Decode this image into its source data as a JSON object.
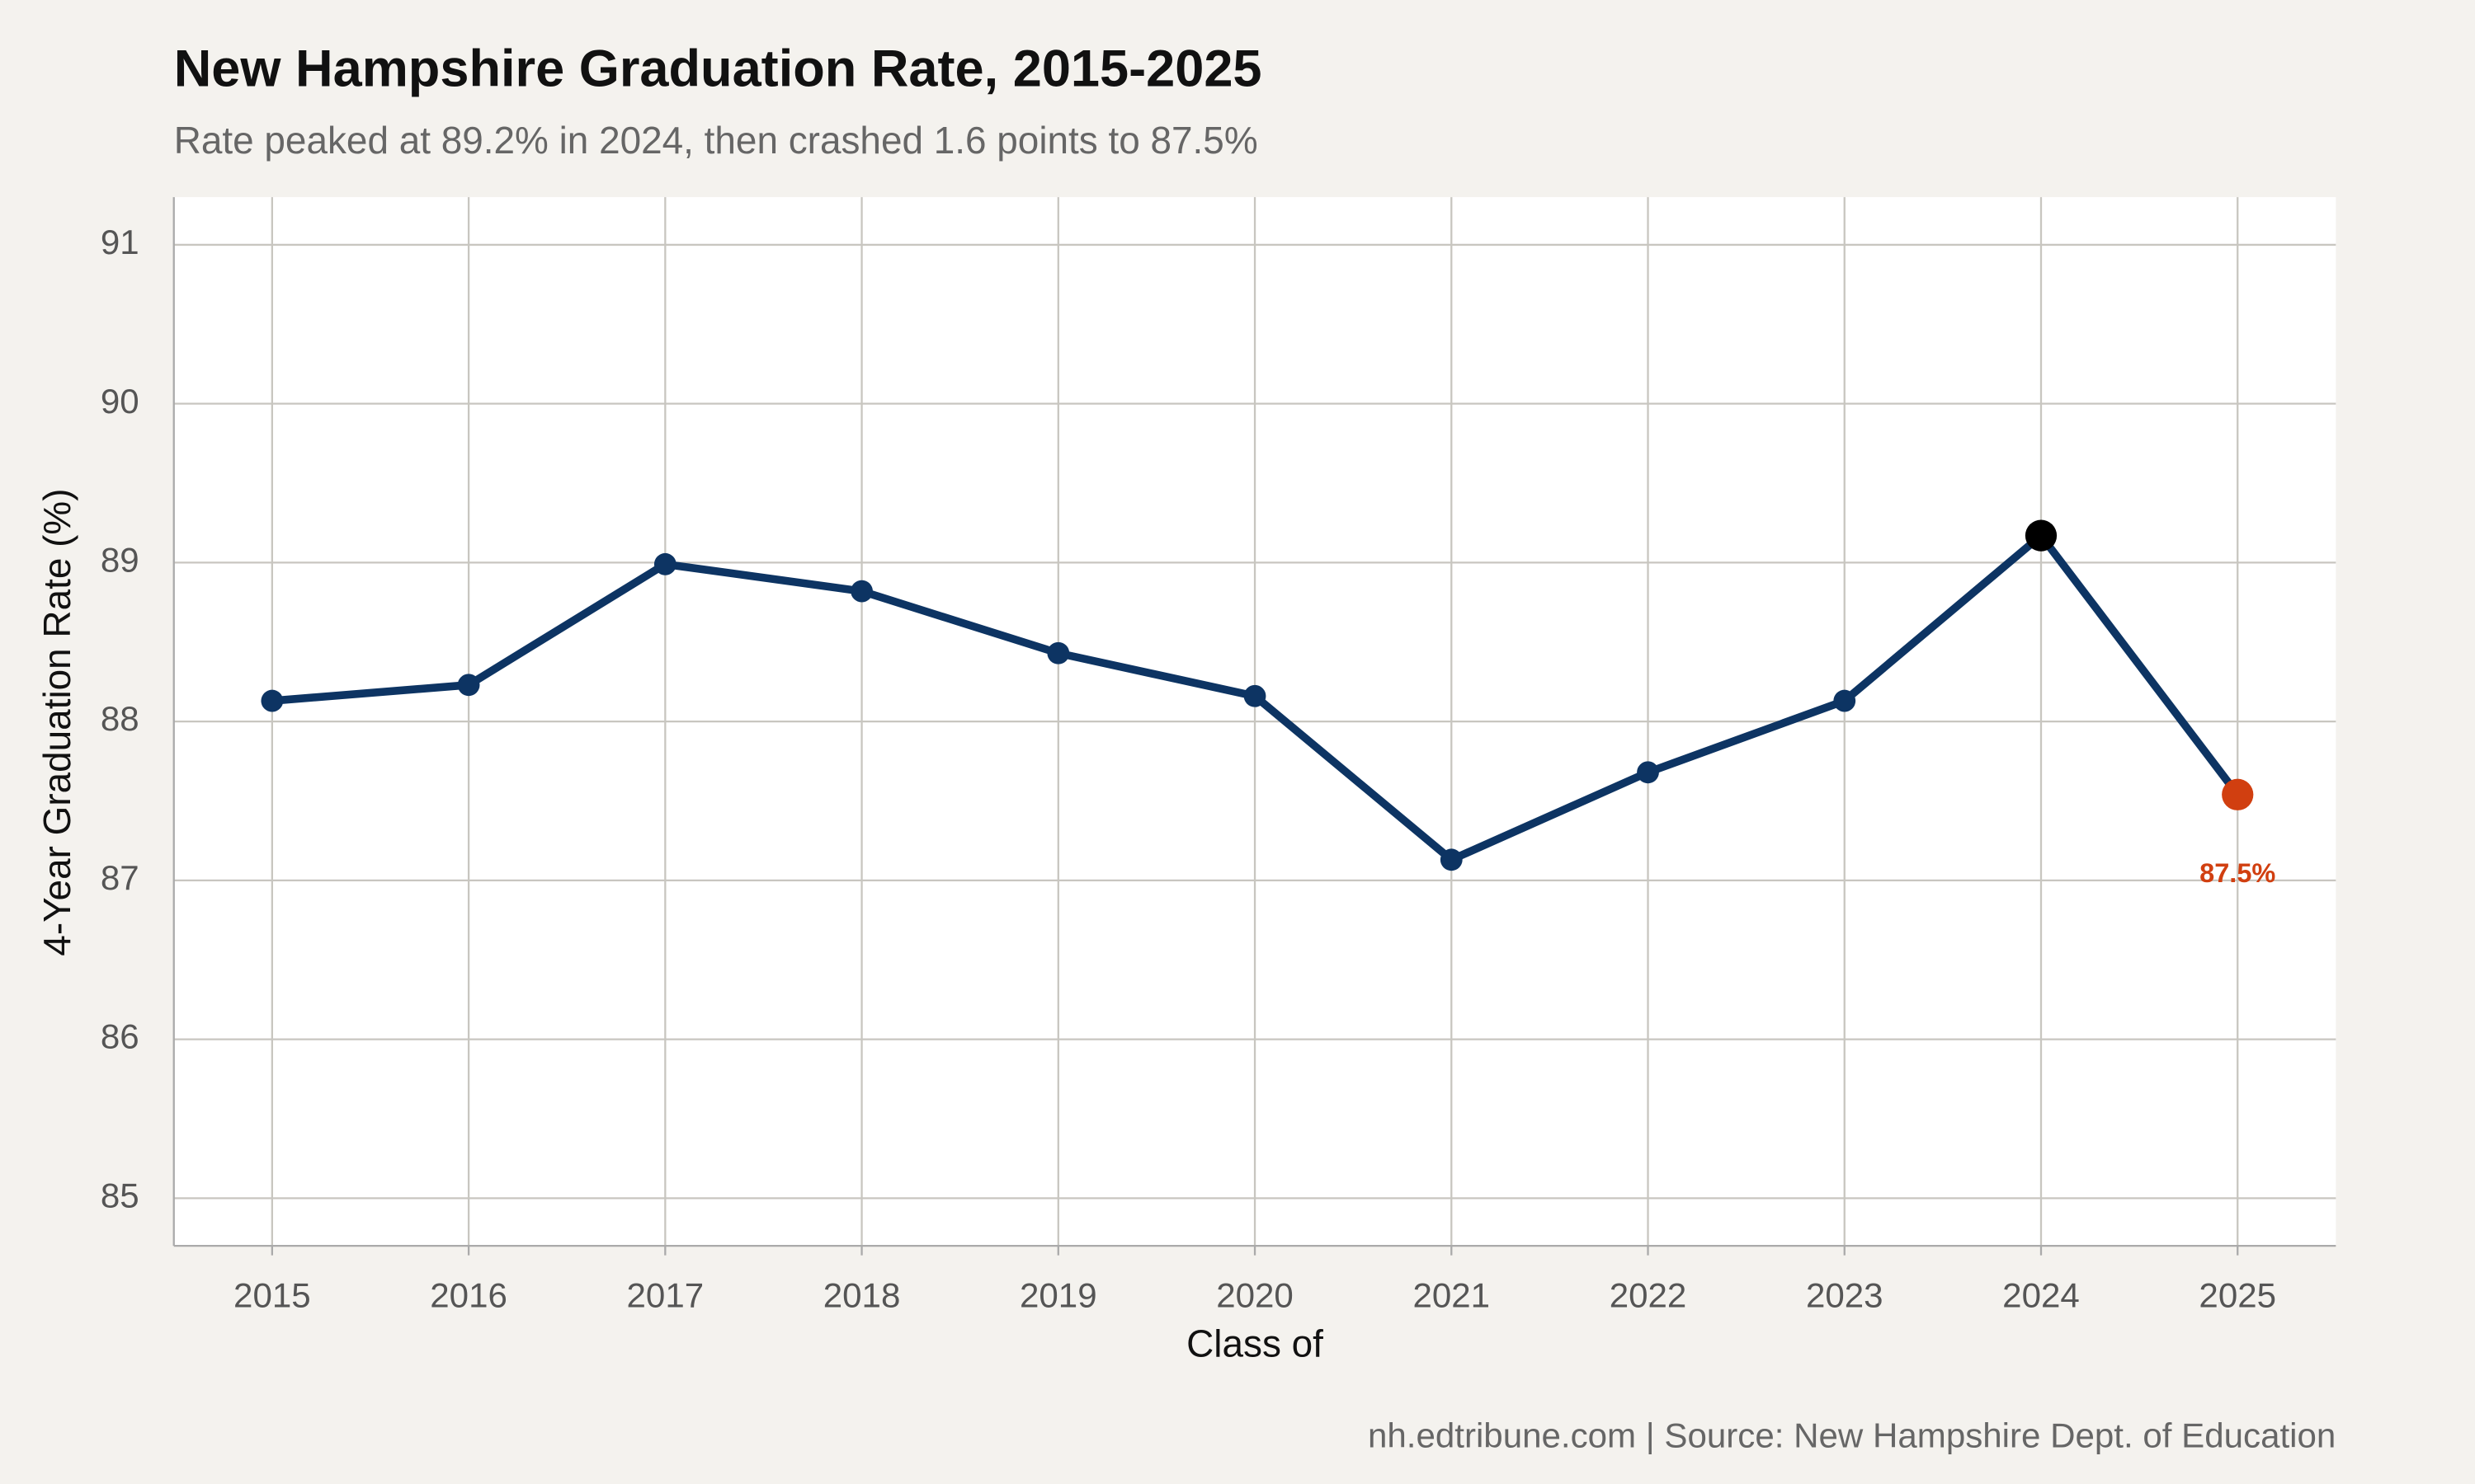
{
  "chart_data": {
    "type": "line",
    "title": "New Hampshire Graduation Rate, 2015-2025",
    "subtitle": "Rate peaked at 89.2% in 2024, then crashed 1.6 points to 87.5%",
    "x_label": "Class of",
    "y_label": "4-Year Graduation Rate (%)",
    "caption": "nh.edtribune.com | Source: New Hampshire Dept. of Education",
    "x": [
      2015,
      2016,
      2017,
      2018,
      2019,
      2020,
      2021,
      2022,
      2023,
      2024,
      2025
    ],
    "series": [
      {
        "name": "Graduation rate",
        "color": "#0d3463",
        "values": [
          88.13,
          88.23,
          88.99,
          88.82,
          88.43,
          88.16,
          87.13,
          87.68,
          88.13,
          89.17,
          87.54
        ],
        "marker_colors": [
          "#0d3463",
          "#0d3463",
          "#0d3463",
          "#0d3463",
          "#0d3463",
          "#0d3463",
          "#0d3463",
          "#0d3463",
          "#0d3463",
          "#000000",
          "#d13f10"
        ],
        "value_labels": [
          null,
          null,
          null,
          null,
          null,
          null,
          null,
          null,
          null,
          null,
          "87.5%"
        ]
      }
    ],
    "xlim": [
      2014.5,
      2025.5
    ],
    "ylim": [
      84.7,
      91.3
    ],
    "xticks": [
      2015,
      2016,
      2017,
      2018,
      2019,
      2020,
      2021,
      2022,
      2023,
      2024,
      2025
    ],
    "yticks": [
      85,
      86,
      87,
      88,
      89,
      90,
      91
    ],
    "grid": true
  }
}
